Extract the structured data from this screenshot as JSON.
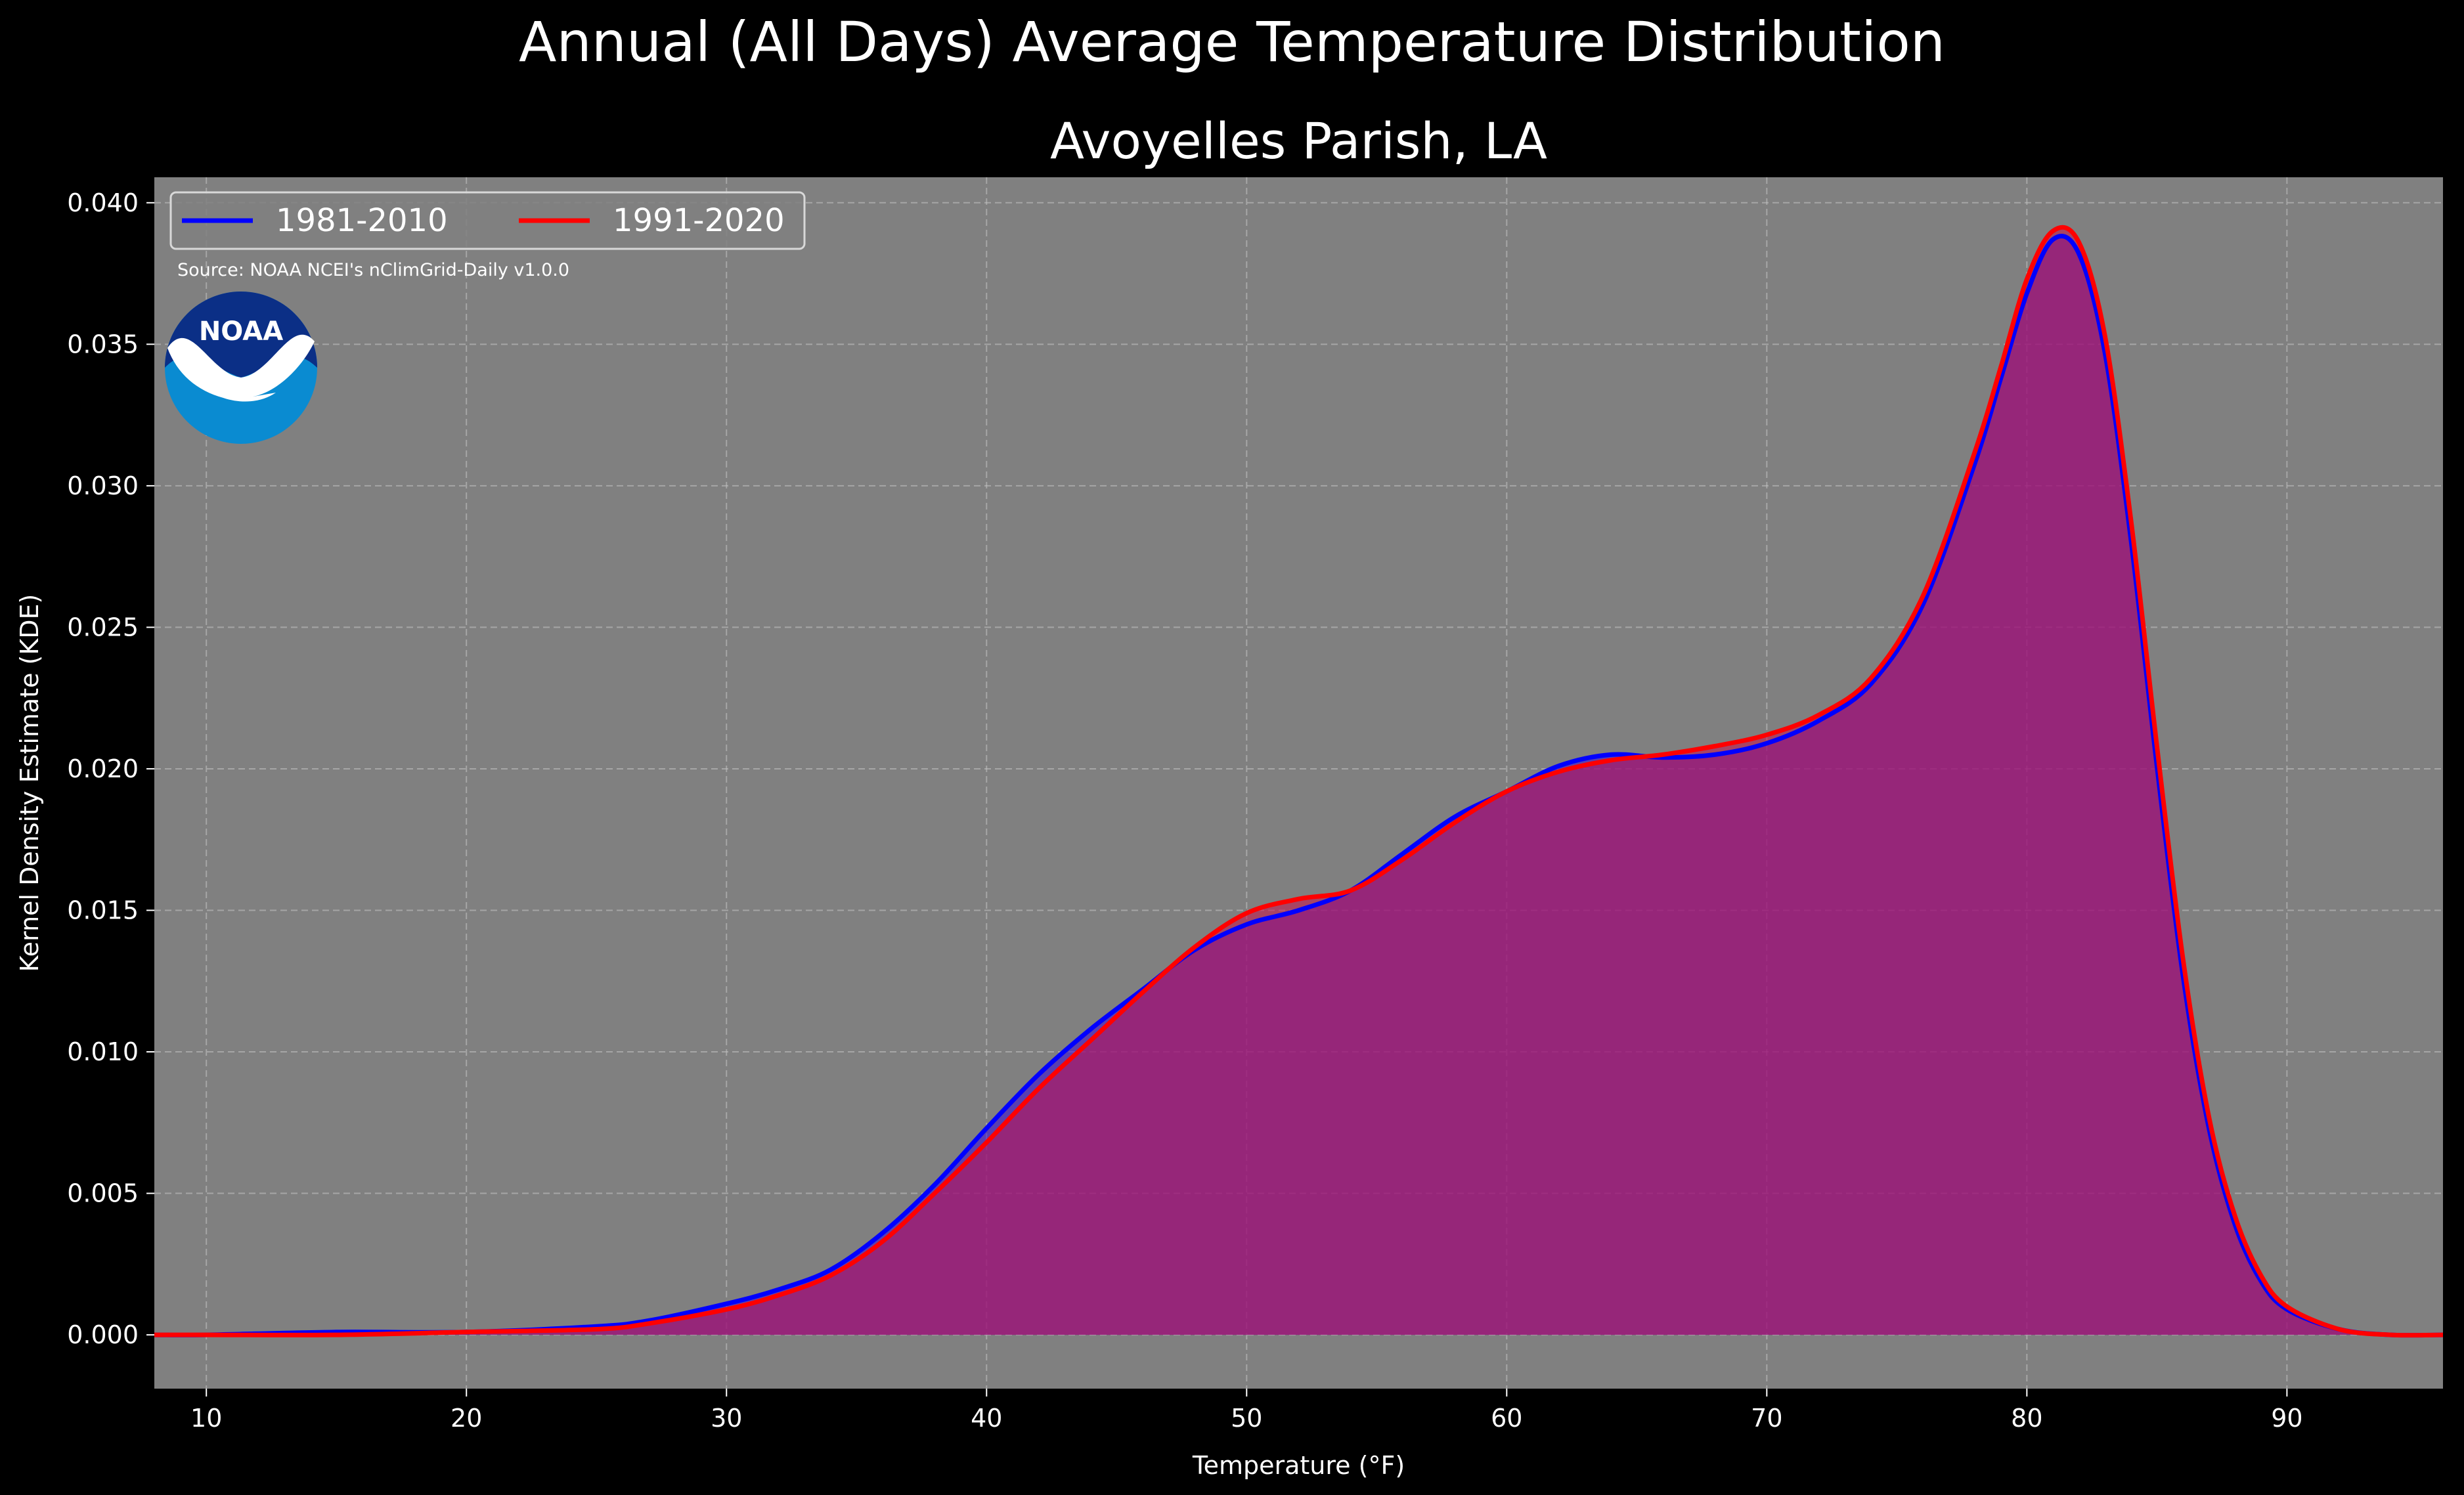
{
  "suptitle": "Annual (All Days) Average Temperature Distribution",
  "title": "Avoyelles Parish, LA",
  "source": "Source: NOAA NCEI's nClimGrid-Daily v1.0.0",
  "logo_text": "NOAA",
  "colors": {
    "background": "#000000",
    "plot_background": "#808080",
    "series_1981": "#0000ff",
    "series_1991": "#ff0000",
    "fill_overlap": "#a01e5e"
  },
  "chart_data": {
    "type": "area",
    "xlabel": "Temperature ($^\\circ$F)",
    "xlabel_display": "Temperature (°F)",
    "ylabel": "Kernel Density Estimate (KDE)",
    "xlim": [
      8,
      96
    ],
    "ylim": [
      -0.0019,
      0.0409
    ],
    "x_ticks": [
      10,
      20,
      30,
      40,
      50,
      60,
      70,
      80,
      90
    ],
    "y_ticks": [
      0.0,
      0.005,
      0.01,
      0.015,
      0.02,
      0.025,
      0.03,
      0.035,
      0.04
    ],
    "y_tick_labels": [
      "0.000",
      "0.005",
      "0.010",
      "0.015",
      "0.020",
      "0.025",
      "0.030",
      "0.035",
      "0.040"
    ],
    "grid": true,
    "legend_position": "top-left",
    "x": [
      8,
      10,
      15,
      20,
      25,
      27,
      30,
      32,
      34,
      36,
      38,
      40,
      42,
      44,
      46,
      48,
      50,
      52,
      54,
      56,
      58,
      60,
      62,
      64,
      66,
      68,
      70,
      72,
      74,
      76,
      78,
      79,
      80,
      81,
      82,
      83,
      84,
      85,
      86,
      87,
      88,
      89,
      90,
      92,
      94,
      96
    ],
    "series": [
      {
        "name": "1981-2010",
        "values": [
          0.0,
          0.0,
          0.0001,
          0.0001,
          0.0003,
          0.0005,
          0.0011,
          0.0016,
          0.0023,
          0.0036,
          0.0053,
          0.0073,
          0.0092,
          0.0108,
          0.0122,
          0.0136,
          0.0145,
          0.015,
          0.0157,
          0.017,
          0.0183,
          0.0192,
          0.0201,
          0.0205,
          0.0204,
          0.0205,
          0.0209,
          0.0217,
          0.023,
          0.0258,
          0.0308,
          0.0338,
          0.0368,
          0.0387,
          0.0382,
          0.0347,
          0.0281,
          0.0201,
          0.0127,
          0.0073,
          0.0039,
          0.0019,
          0.0009,
          0.0002,
          0.0,
          0.0
        ]
      },
      {
        "name": "1991-2020",
        "values": [
          0.0,
          0.0,
          0.0,
          0.0001,
          0.0002,
          0.0004,
          0.0009,
          0.0014,
          0.0021,
          0.0033,
          0.005,
          0.0068,
          0.0087,
          0.0104,
          0.0121,
          0.0137,
          0.0149,
          0.0154,
          0.0157,
          0.0168,
          0.0181,
          0.0192,
          0.0199,
          0.0203,
          0.0205,
          0.0208,
          0.0212,
          0.0219,
          0.0232,
          0.0261,
          0.0312,
          0.0342,
          0.0373,
          0.039,
          0.0386,
          0.0353,
          0.0288,
          0.0208,
          0.0133,
          0.0077,
          0.0042,
          0.0021,
          0.001,
          0.0002,
          0.0,
          0.0
        ]
      }
    ]
  }
}
